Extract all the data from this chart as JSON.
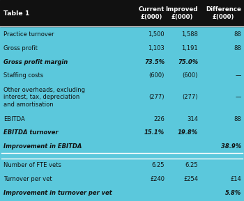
{
  "title": "Table 1",
  "header_cols": [
    "Current\n£(000)",
    "Improved\n£(000)",
    "Difference\n£(000)"
  ],
  "rows": [
    {
      "label": "Practice turnover",
      "current": "1,500",
      "improved": "1,588",
      "diff": "88",
      "bold": false,
      "italic": false
    },
    {
      "label": "Gross profit",
      "current": "1,103",
      "improved": "1,191",
      "diff": "88",
      "bold": false,
      "italic": false
    },
    {
      "label": "Gross profit margin",
      "current": "73.5%",
      "improved": "75.0%",
      "diff": "",
      "bold": true,
      "italic": true
    },
    {
      "label": "Staffing costs",
      "current": "(600)",
      "improved": "(600)",
      "diff": "—",
      "bold": false,
      "italic": false
    },
    {
      "label": "Other overheads, excluding\ninterest, tax, depreciation\nand amortisation",
      "current": "(277)",
      "improved": "(277)",
      "diff": "—",
      "bold": false,
      "italic": false
    },
    {
      "label": "EBITDA",
      "current": "226",
      "improved": "314",
      "diff": "88",
      "bold": false,
      "italic": false
    },
    {
      "label": "EBITDA turnover",
      "current": "15.1%",
      "improved": "19.8%",
      "diff": "",
      "bold": true,
      "italic": true
    },
    {
      "label": "Improvement in EBITDA",
      "current": "",
      "improved": "",
      "diff": "38.9%",
      "bold": true,
      "italic": true
    }
  ],
  "rows2": [
    {
      "label": "Number of FTE vets",
      "current": "6.25",
      "improved": "6.25",
      "diff": "",
      "bold": false,
      "italic": false
    },
    {
      "label": "Turnover per vet",
      "current": "£240",
      "improved": "£254",
      "diff": "£14",
      "bold": false,
      "italic": false
    },
    {
      "label": "Improvement in turnover per vet",
      "current": "",
      "improved": "",
      "diff": "5.8%",
      "bold": true,
      "italic": true
    }
  ],
  "bg_color": "#5bc8dc",
  "header_bg": "#111111",
  "header_fg": "#ffffff",
  "divider_color": "#3399bb",
  "text_color": "#111111",
  "font_size": 6.0,
  "header_font_size": 6.2
}
